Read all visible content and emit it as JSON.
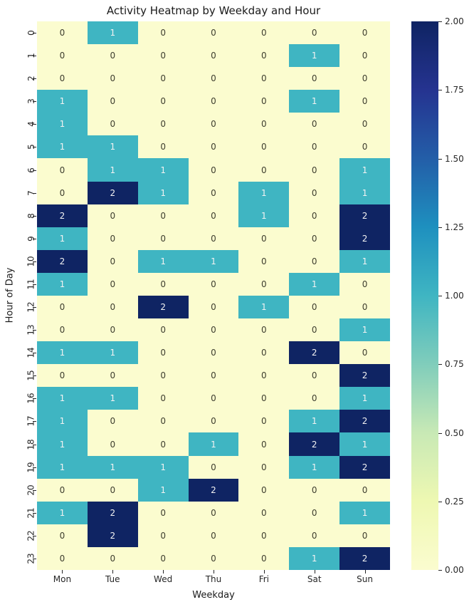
{
  "chart_data": {
    "type": "heatmap",
    "title": "Activity Heatmap by Weekday and Hour",
    "xlabel": "Weekday",
    "ylabel": "Hour of Day",
    "columns": [
      "Mon",
      "Tue",
      "Wed",
      "Thu",
      "Fri",
      "Sat",
      "Sun"
    ],
    "rows": [
      "0",
      "1",
      "2",
      "3",
      "4",
      "5",
      "6",
      "7",
      "8",
      "9",
      "10",
      "11",
      "12",
      "13",
      "14",
      "15",
      "16",
      "17",
      "18",
      "19",
      "20",
      "21",
      "22",
      "23"
    ],
    "values": [
      [
        0,
        1,
        0,
        0,
        0,
        0,
        0
      ],
      [
        0,
        0,
        0,
        0,
        0,
        1,
        0
      ],
      [
        0,
        0,
        0,
        0,
        0,
        0,
        0
      ],
      [
        1,
        0,
        0,
        0,
        0,
        1,
        0
      ],
      [
        1,
        0,
        0,
        0,
        0,
        0,
        0
      ],
      [
        1,
        1,
        0,
        0,
        0,
        0,
        0
      ],
      [
        0,
        1,
        1,
        0,
        0,
        0,
        1
      ],
      [
        0,
        2,
        1,
        0,
        1,
        0,
        1
      ],
      [
        2,
        0,
        0,
        0,
        1,
        0,
        2
      ],
      [
        1,
        0,
        0,
        0,
        0,
        0,
        2
      ],
      [
        2,
        0,
        1,
        1,
        0,
        0,
        1
      ],
      [
        1,
        0,
        0,
        0,
        0,
        1,
        0
      ],
      [
        0,
        0,
        2,
        0,
        1,
        0,
        0
      ],
      [
        0,
        0,
        0,
        0,
        0,
        0,
        1
      ],
      [
        1,
        1,
        0,
        0,
        0,
        2,
        0
      ],
      [
        0,
        0,
        0,
        0,
        0,
        0,
        2
      ],
      [
        1,
        1,
        0,
        0,
        0,
        0,
        1
      ],
      [
        1,
        0,
        0,
        0,
        0,
        1,
        2
      ],
      [
        1,
        0,
        0,
        1,
        0,
        2,
        1
      ],
      [
        1,
        1,
        1,
        0,
        0,
        1,
        2
      ],
      [
        0,
        0,
        1,
        2,
        0,
        0,
        0
      ],
      [
        1,
        2,
        0,
        0,
        0,
        0,
        1
      ],
      [
        0,
        2,
        0,
        0,
        0,
        0,
        0
      ],
      [
        0,
        0,
        0,
        0,
        0,
        1,
        2
      ]
    ],
    "vmin": 0,
    "vmax": 2,
    "colormap": "YlGnBu",
    "colorbar_ticks": [
      "2.00",
      "1.75",
      "1.50",
      "1.25",
      "1.00",
      "0.75",
      "0.50",
      "0.25",
      "0.00"
    ],
    "colorbar_gradient_bottom_to_top": [
      "#fbfccf",
      "#eef8b2",
      "#c8e9b5",
      "#80cdbb",
      "#3fb5c2",
      "#1e90bf",
      "#235ea8",
      "#253390",
      "#0f2463"
    ],
    "value_colors": {
      "0": "#fbfccf",
      "1": "#3fb5c2",
      "2": "#0f2463"
    },
    "annot_text_on_light": "#3d3d2e",
    "annot_text_on_dark": "#f2f2f2",
    "tick_color": "#262626"
  }
}
